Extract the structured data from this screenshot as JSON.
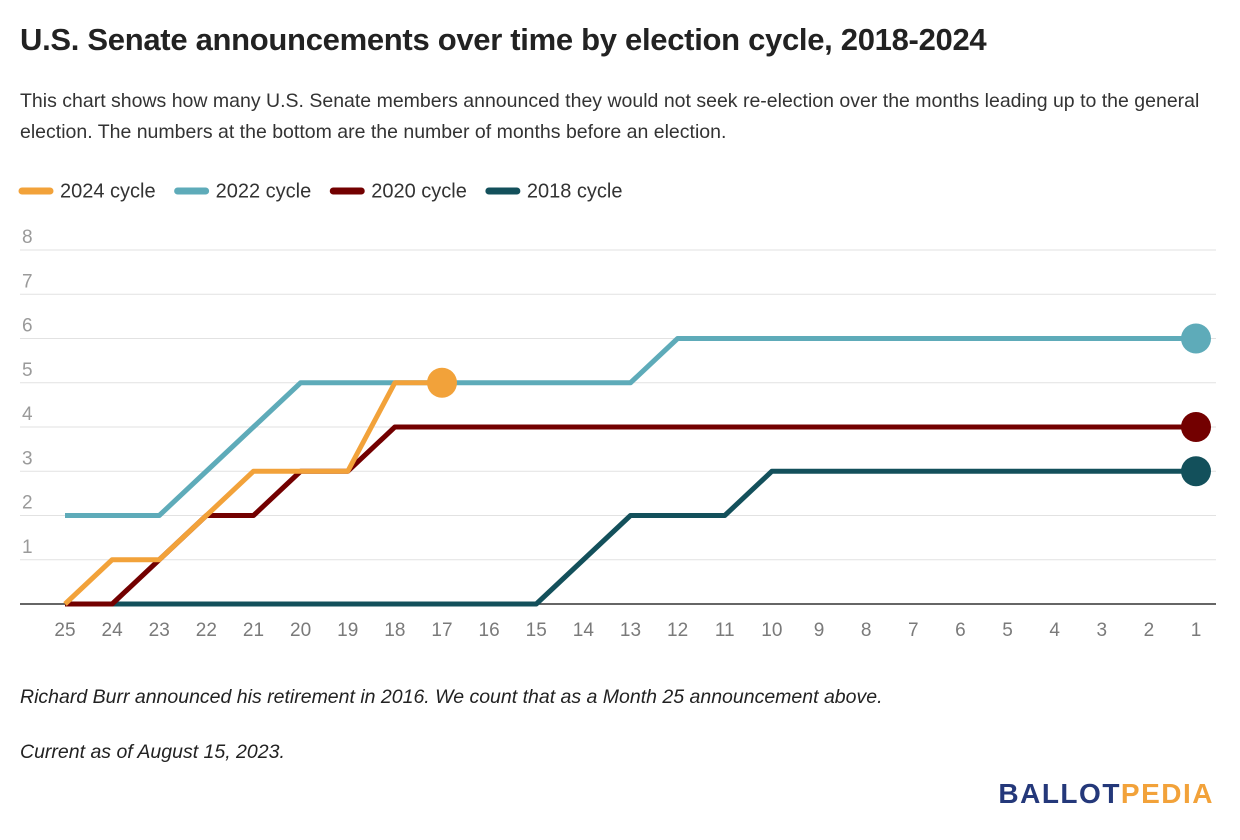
{
  "chart_data": {
    "type": "line",
    "title": "U.S. Senate announcements over time by election cycle, 2018-2024",
    "subtitle": "This chart shows how many U.S. Senate members announced they would not seek re-election over the months leading up to the general election. The numbers at the bottom are the number of months before an election.",
    "categories": [
      "25",
      "24",
      "23",
      "22",
      "21",
      "20",
      "19",
      "18",
      "17",
      "16",
      "15",
      "14",
      "13",
      "12",
      "11",
      "10",
      "9",
      "8",
      "7",
      "6",
      "5",
      "4",
      "3",
      "2",
      "1"
    ],
    "series": [
      {
        "name": "2024 cycle",
        "color": "#f2a23a",
        "values": [
          0,
          1,
          1,
          2,
          3,
          3,
          3,
          5,
          5,
          null,
          null,
          null,
          null,
          null,
          null,
          null,
          null,
          null,
          null,
          null,
          null,
          null,
          null,
          null,
          null
        ]
      },
      {
        "name": "2022 cycle",
        "color": "#5eabb9",
        "values": [
          2,
          2,
          2,
          3,
          4,
          5,
          5,
          5,
          5,
          5,
          5,
          5,
          5,
          6,
          6,
          6,
          6,
          6,
          6,
          6,
          6,
          6,
          6,
          6,
          6
        ]
      },
      {
        "name": "2020 cycle",
        "color": "#730000",
        "values": [
          0,
          0,
          1,
          2,
          2,
          3,
          3,
          4,
          4,
          4,
          4,
          4,
          4,
          4,
          4,
          4,
          4,
          4,
          4,
          4,
          4,
          4,
          4,
          4,
          4
        ]
      },
      {
        "name": "2018 cycle",
        "color": "#13505b",
        "values": [
          0,
          0,
          0,
          0,
          0,
          0,
          0,
          0,
          0,
          0,
          0,
          1,
          2,
          2,
          2,
          3,
          3,
          3,
          3,
          3,
          3,
          3,
          3,
          3,
          3
        ]
      }
    ],
    "ylim": [
      0,
      8
    ],
    "yticks": [
      1,
      2,
      3,
      4,
      5,
      6,
      7,
      8
    ],
    "grid": true,
    "notes": [
      "Richard Burr announced his retirement in 2016. We count that as a Month 25 announcement above.",
      "Current as of August 15, 2023."
    ],
    "logo": [
      "BALLOT",
      "PEDIA"
    ]
  }
}
